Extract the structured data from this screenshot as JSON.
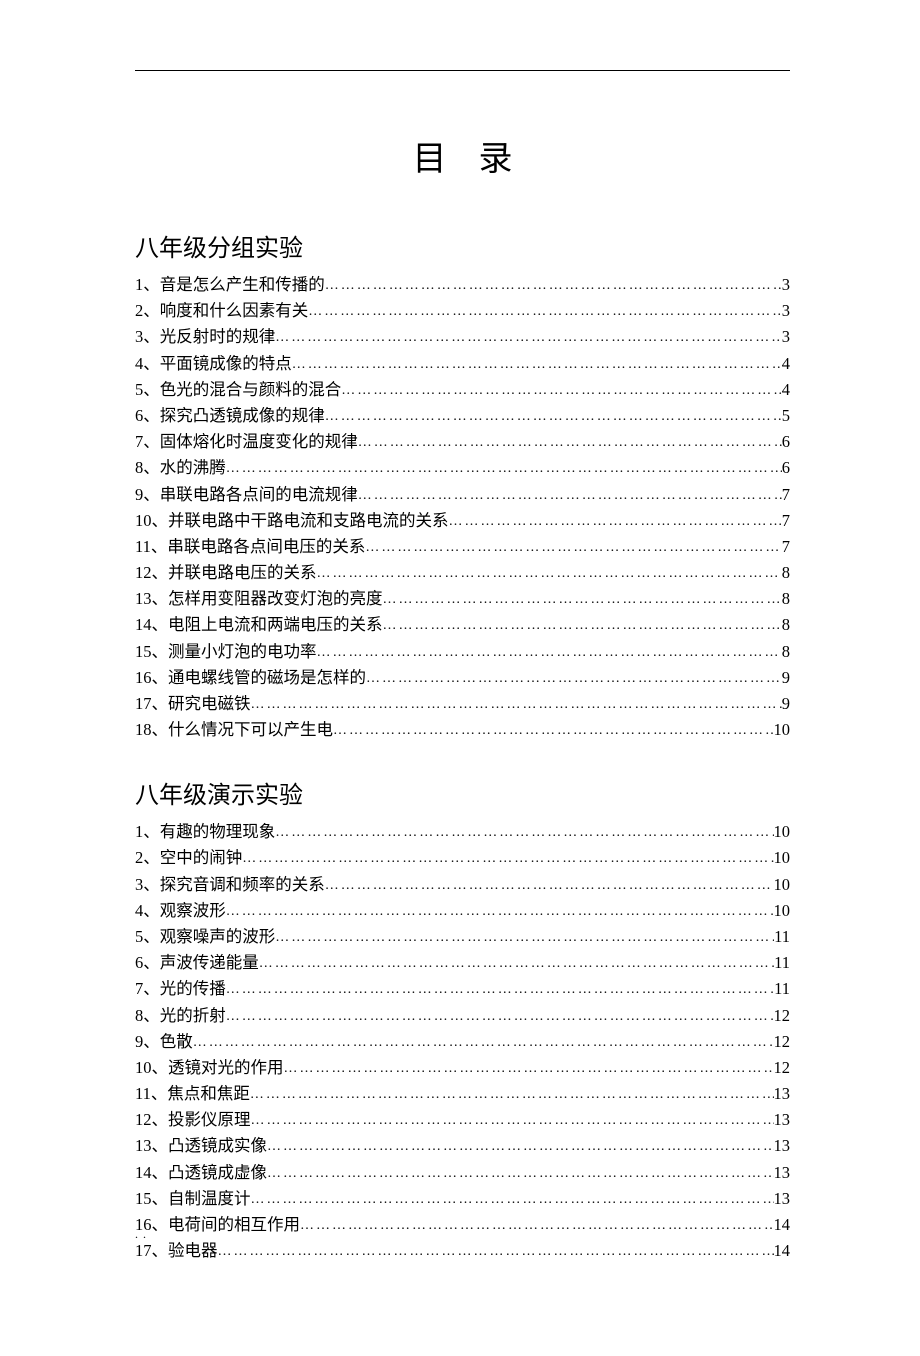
{
  "title": "目录",
  "sections": [
    {
      "heading": "八年级分组实验",
      "items": [
        {
          "n": "1、",
          "label": "音是怎么产生和传播的",
          "page": "3"
        },
        {
          "n": "2、",
          "label": "响度和什么因素有关",
          "page": "3"
        },
        {
          "n": "3、",
          "label": "光反射时的规律",
          "page": "3"
        },
        {
          "n": "4、",
          "label": "平面镜成像的特点",
          "page": "4"
        },
        {
          "n": "5、",
          "label": "色光的混合与颜料的混合",
          "page": "4"
        },
        {
          "n": "6、",
          "label": "探究凸透镜成像的规律",
          "page": "5"
        },
        {
          "n": "7、",
          "label": "固体熔化时温度变化的规律",
          "page": "6"
        },
        {
          "n": "8、",
          "label": "水的沸腾",
          "page": "6"
        },
        {
          "n": "9、",
          "label": "串联电路各点间的电流规律",
          "page": "7"
        },
        {
          "n": "10、",
          "label": "并联电路中干路电流和支路电流的关系 ",
          "page": "7"
        },
        {
          "n": "11、",
          "label": "串联电路各点间电压的关系 ",
          "page": "7"
        },
        {
          "n": "12、",
          "label": "并联电路电压的关系 ",
          "page": "8"
        },
        {
          "n": "13、",
          "label": "怎样用变阻器改变灯泡的亮度 ",
          "page": "8"
        },
        {
          "n": "14、",
          "label": "电阻上电流和两端电压的关系 ",
          "page": "8"
        },
        {
          "n": "15、",
          "label": "测量小灯泡的电功率 ",
          "page": "8"
        },
        {
          "n": "16、",
          "label": "通电螺线管的磁场是怎样的 ",
          "page": "9"
        },
        {
          "n": "17、",
          "label": "研究电磁铁 ",
          "page": "9"
        },
        {
          "n": "18、",
          "label": "什么情况下可以产生电 ",
          "page": "10"
        }
      ]
    },
    {
      "heading": "八年级演示实验",
      "items": [
        {
          "n": "1、",
          "label": "有趣的物理现象",
          "page": "10"
        },
        {
          "n": "2、",
          "label": "空中的闹钟",
          "page": "10"
        },
        {
          "n": "3、",
          "label": "探究音调和频率的关系",
          "page": "10"
        },
        {
          "n": "4、",
          "label": "观察波形",
          "page": "10"
        },
        {
          "n": "5、",
          "label": "观察噪声的波形",
          "page": "11"
        },
        {
          "n": "6、",
          "label": "声波传递能量",
          "page": "11"
        },
        {
          "n": "7、",
          "label": "光的传播",
          "page": "11"
        },
        {
          "n": "8、",
          "label": "光的折射",
          "page": "12"
        },
        {
          "n": "9、",
          "label": "色散",
          "page": "12"
        },
        {
          "n": "10、",
          "label": "透镜对光的作用 ",
          "page": "12"
        },
        {
          "n": "11、",
          "label": "焦点和焦距 ",
          "page": "13"
        },
        {
          "n": "12、",
          "label": "投影仪原理 ",
          "page": "13"
        },
        {
          "n": "13、",
          "label": "凸透镜成实像 ",
          "page": "13"
        },
        {
          "n": "14、",
          "label": "凸透镜成虚像 ",
          "page": "13"
        },
        {
          "n": "15、",
          "label": "自制温度计 ",
          "page": "13"
        },
        {
          "n": "16、",
          "label": "电荷间的相互作用 ",
          "page": "14"
        },
        {
          "n": "17、",
          "label": "验电器 ",
          "page": "14"
        }
      ]
    }
  ],
  "footer_mark": ". ."
}
